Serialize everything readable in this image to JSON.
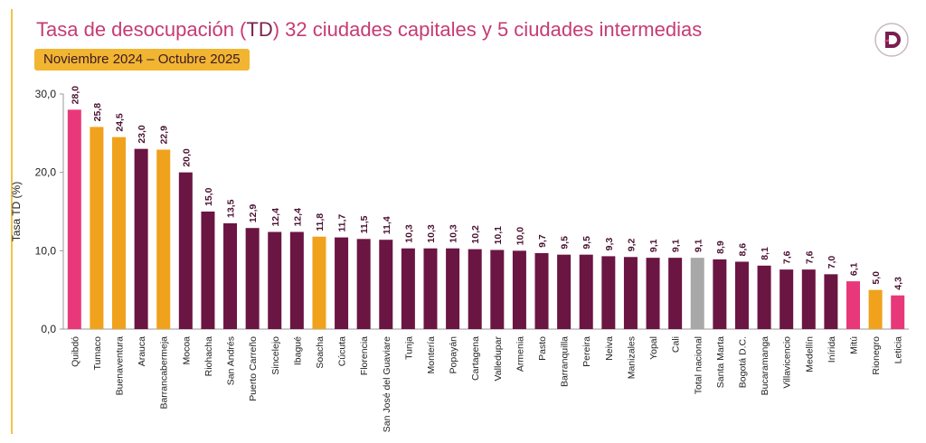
{
  "header": {
    "title_main": "Tasa de desocupación (",
    "title_td": "TD",
    "title_rest": ") 32 ciudades capitales y 5 ciudades intermedias",
    "period": "Noviembre 2024 – Octubre 2025"
  },
  "logo": {
    "icon": "dane-logo-icon",
    "letter": "D"
  },
  "colors": {
    "capital": "#6b1543",
    "quibdo": "#e8386e",
    "intermediate": "#f0a21d",
    "national": "#a8a8a8",
    "pink": "#e8387a"
  },
  "chart_data": {
    "type": "bar",
    "ylabel": "Tasa TD (%)",
    "ylim": [
      0,
      30
    ],
    "yticks": [
      "0,0",
      "10,0",
      "20,0",
      "30,0"
    ],
    "categories": [
      "Quibdó",
      "Tumaco",
      "Buenaventura",
      "Arauca",
      "Barrancabermeja",
      "Mocoa",
      "Riohacha",
      "San Andrés",
      "Puerto Carreño",
      "Sincelejo",
      "Ibagué",
      "Soacha",
      "Cúcuta",
      "Florencia",
      "San José del Guaviare",
      "Tunja",
      "Montería",
      "Popayán",
      "Cartagena",
      "Valledupar",
      "Armenia",
      "Pasto",
      "Barranquilla",
      "Pereira",
      "Neiva",
      "Manizales",
      "Yopal",
      "Cali",
      "Total nacional",
      "Santa Marta",
      "Bogotá D.C.",
      "Bucaramanga",
      "Villavicencio",
      "Medellín",
      "Inírida",
      "Mitú",
      "Rionegro",
      "Leticia"
    ],
    "values": [
      28.0,
      25.8,
      24.5,
      23.0,
      22.9,
      20.0,
      15.0,
      13.5,
      12.9,
      12.4,
      12.4,
      11.8,
      11.7,
      11.5,
      11.4,
      10.3,
      10.3,
      10.3,
      10.2,
      10.1,
      10.0,
      9.7,
      9.5,
      9.5,
      9.3,
      9.2,
      9.1,
      9.1,
      9.1,
      8.9,
      8.6,
      8.1,
      7.6,
      7.6,
      7.0,
      6.1,
      5.0,
      4.3
    ],
    "labels": [
      "28,0",
      "25,8",
      "24,5",
      "23,0",
      "22,9",
      "20,0",
      "15,0",
      "13,5",
      "12,9",
      "12,4",
      "12,4",
      "11,8",
      "11,7",
      "11,5",
      "11,4",
      "10,3",
      "10,3",
      "10,3",
      "10,2",
      "10,1",
      "10,0",
      "9,7",
      "9,5",
      "9,5",
      "9,3",
      "9,2",
      "9,1",
      "9,1",
      "9,1",
      "8,9",
      "8,6",
      "8,1",
      "7,6",
      "7,6",
      "7,0",
      "6,1",
      "5,0",
      "4,3"
    ],
    "bar_colors": [
      "pink",
      "intermediate",
      "intermediate",
      "capital",
      "intermediate",
      "capital",
      "capital",
      "capital",
      "capital",
      "capital",
      "capital",
      "intermediate",
      "capital",
      "capital",
      "capital",
      "capital",
      "capital",
      "capital",
      "capital",
      "capital",
      "capital",
      "capital",
      "capital",
      "capital",
      "capital",
      "capital",
      "capital",
      "capital",
      "national",
      "capital",
      "capital",
      "capital",
      "capital",
      "capital",
      "capital",
      "pink",
      "intermediate",
      "pink"
    ],
    "grid": false,
    "legend": "none"
  }
}
